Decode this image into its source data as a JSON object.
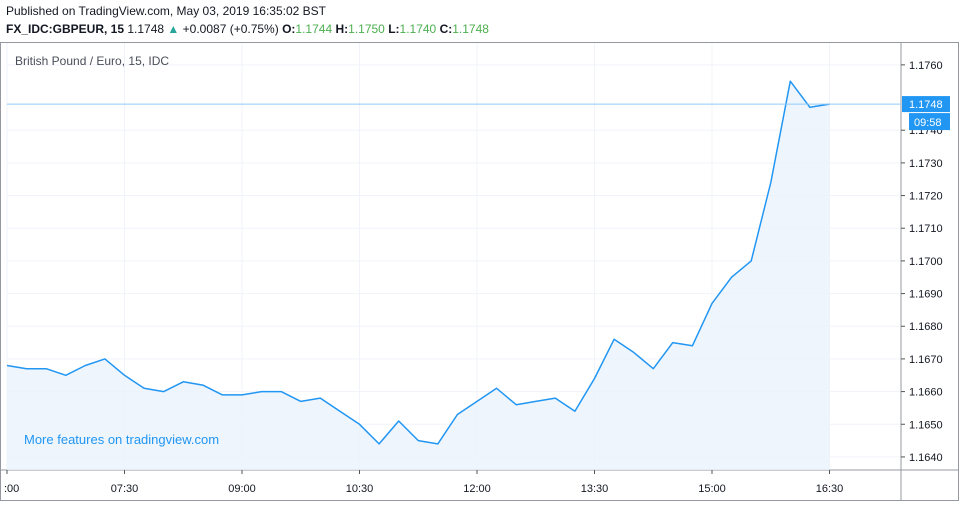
{
  "header": {
    "published": "Published on TradingView.com, May 03, 2019 16:35:02 BST",
    "symbol": "FX_IDC:GBPEUR, 15",
    "last": "1.1748",
    "change_arrow": "▲",
    "change": "+0.0087 (+0.75%)",
    "o_label": "O:",
    "o": "1.1744",
    "h_label": "H:",
    "h": "1.1750",
    "l_label": "L:",
    "l": "1.1740",
    "c_label": "C:",
    "c": "1.1748"
  },
  "colors": {
    "line": "#2196f3",
    "area": "#eaf3fd",
    "up": "#26a69a",
    "ohlc": "#4caf50",
    "price_label_bg": "#2196f3",
    "grid": "#f0f3fa",
    "axis": "#555555"
  },
  "chart_data": {
    "type": "area",
    "title": "British Pound / Euro, 15, IDC",
    "watermark": "More features on tradingview.com",
    "xlabel": "",
    "ylabel": "",
    "x_ticks": [
      ":00",
      "07:30",
      "09:00",
      "10:30",
      "12:00",
      "13:30",
      "15:00",
      "16:30"
    ],
    "y_ticks": [
      "1.1760",
      "1.1740",
      "1.1730",
      "1.1720",
      "1.1710",
      "1.1700",
      "1.1690",
      "1.1680",
      "1.1670",
      "1.1660",
      "1.1650",
      "1.1640"
    ],
    "ylim": [
      1.1636,
      1.1767
    ],
    "last_price": "1.1748",
    "countdown": "09:58",
    "grid": true,
    "series": [
      {
        "x": [
          "06:00",
          "06:15",
          "06:30",
          "06:45",
          "07:00",
          "07:15",
          "07:30",
          "07:45",
          "08:00",
          "08:15",
          "08:30",
          "08:45",
          "09:00",
          "09:15",
          "09:30",
          "09:45",
          "10:00",
          "10:15",
          "10:30",
          "10:45",
          "11:00",
          "11:15",
          "11:30",
          "11:45",
          "12:00",
          "12:15",
          "12:30",
          "12:45",
          "13:00",
          "13:15",
          "13:30",
          "13:45",
          "14:00",
          "14:15",
          "14:30",
          "14:45",
          "15:00",
          "15:15",
          "15:30",
          "15:45",
          "16:00",
          "16:15",
          "16:30"
        ],
        "values": [
          1.1668,
          1.1667,
          1.1667,
          1.1665,
          1.1668,
          1.167,
          1.1665,
          1.1661,
          1.166,
          1.1663,
          1.1662,
          1.1659,
          1.1659,
          1.166,
          1.166,
          1.1657,
          1.1658,
          1.1654,
          1.165,
          1.1644,
          1.1651,
          1.1645,
          1.1644,
          1.1653,
          1.1657,
          1.1661,
          1.1656,
          1.1657,
          1.1658,
          1.1654,
          1.1664,
          1.1676,
          1.1672,
          1.1667,
          1.1675,
          1.1674,
          1.1687,
          1.1695,
          1.17,
          1.1724,
          1.1755,
          1.1747,
          1.1748
        ]
      }
    ]
  }
}
